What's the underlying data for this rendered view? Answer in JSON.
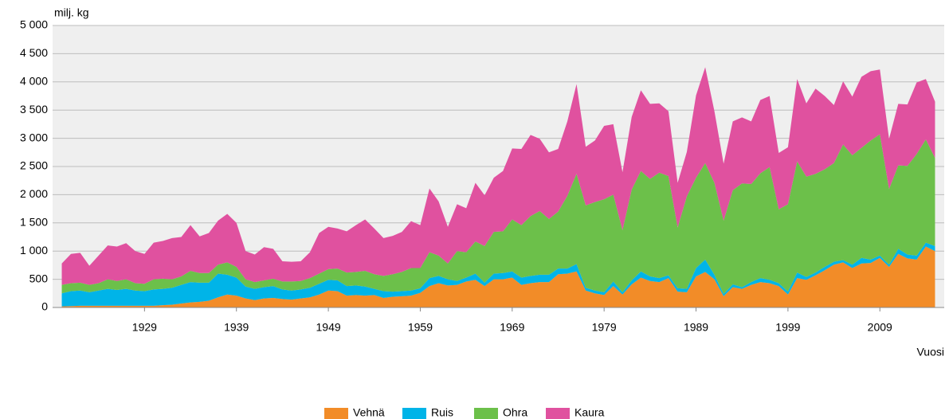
{
  "chart_data": {
    "type": "stacked_area",
    "y_label": "milj. kg",
    "x_label": "Vuosi",
    "x": [
      1920,
      1921,
      1922,
      1923,
      1924,
      1925,
      1926,
      1927,
      1928,
      1929,
      1930,
      1931,
      1932,
      1933,
      1934,
      1935,
      1936,
      1937,
      1938,
      1939,
      1940,
      1941,
      1942,
      1943,
      1944,
      1945,
      1946,
      1947,
      1948,
      1949,
      1950,
      1951,
      1952,
      1953,
      1954,
      1955,
      1956,
      1957,
      1958,
      1959,
      1960,
      1961,
      1962,
      1963,
      1964,
      1965,
      1966,
      1967,
      1968,
      1969,
      1970,
      1971,
      1972,
      1973,
      1974,
      1975,
      1976,
      1977,
      1978,
      1979,
      1980,
      1981,
      1982,
      1983,
      1984,
      1985,
      1986,
      1987,
      1988,
      1989,
      1990,
      1991,
      1992,
      1993,
      1994,
      1995,
      1996,
      1997,
      1998,
      1999,
      2000,
      2001,
      2002,
      2003,
      2004,
      2005,
      2006,
      2007,
      2008,
      2009,
      2010,
      2011,
      2012,
      2013,
      2014,
      2015
    ],
    "series": [
      {
        "name": "Vehnä",
        "color": "#f28c28",
        "values": [
          20,
          25,
          30,
          30,
          30,
          30,
          30,
          30,
          30,
          30,
          30,
          40,
          50,
          70,
          90,
          100,
          120,
          180,
          230,
          210,
          160,
          130,
          160,
          170,
          150,
          140,
          160,
          180,
          230,
          300,
          290,
          210,
          220,
          210,
          220,
          170,
          190,
          200,
          210,
          260,
          380,
          430,
          390,
          400,
          460,
          490,
          380,
          500,
          500,
          530,
          400,
          430,
          450,
          450,
          590,
          600,
          640,
          300,
          250,
          220,
          380,
          230,
          410,
          530,
          470,
          450,
          520,
          280,
          270,
          550,
          630,
          500,
          200,
          360,
          330,
          400,
          450,
          430,
          380,
          230,
          520,
          490,
          570,
          660,
          760,
          800,
          700,
          780,
          790,
          880,
          720,
          950,
          870,
          850,
          1080,
          1000
        ]
      },
      {
        "name": "Ruis",
        "color": "#00b4e8",
        "values": [
          230,
          265,
          270,
          240,
          270,
          300,
          280,
          300,
          270,
          260,
          290,
          290,
          300,
          330,
          360,
          340,
          320,
          420,
          350,
          320,
          210,
          200,
          200,
          210,
          170,
          160,
          160,
          170,
          190,
          190,
          190,
          170,
          170,
          160,
          110,
          120,
          90,
          90,
          90,
          80,
          140,
          130,
          110,
          70,
          70,
          110,
          60,
          100,
          110,
          110,
          130,
          130,
          130,
          130,
          100,
          90,
          130,
          50,
          50,
          50,
          80,
          40,
          70,
          110,
          80,
          70,
          50,
          60,
          60,
          150,
          220,
          80,
          40,
          50,
          30,
          50,
          70,
          60,
          50,
          50,
          100,
          50,
          50,
          60,
          50,
          40,
          60,
          100,
          60,
          40,
          40,
          90,
          70,
          70,
          70,
          90
        ]
      },
      {
        "name": "Ohra",
        "color": "#6cc04a",
        "values": [
          150,
          140,
          140,
          130,
          130,
          170,
          160,
          170,
          130,
          130,
          180,
          180,
          150,
          150,
          200,
          170,
          170,
          160,
          220,
          190,
          130,
          120,
          120,
          130,
          140,
          160,
          150,
          170,
          180,
          190,
          210,
          240,
          240,
          280,
          260,
          270,
          310,
          340,
          400,
          360,
          460,
          360,
          280,
          530,
          450,
          570,
          650,
          740,
          740,
          920,
          930,
          1060,
          1130,
          990,
          1010,
          1290,
          1600,
          1460,
          1570,
          1650,
          1540,
          1100,
          1610,
          1780,
          1730,
          1870,
          1760,
          1080,
          1640,
          1600,
          1710,
          1630,
          1300,
          1670,
          1840,
          1740,
          1860,
          2000,
          1310,
          1550,
          1970,
          1780,
          1750,
          1730,
          1750,
          2050,
          1940,
          1950,
          2110,
          2150,
          1340,
          1480,
          1570,
          1800,
          1830,
          1560
        ]
      },
      {
        "name": "Kaura",
        "color": "#e0519f",
        "values": [
          380,
          520,
          530,
          340,
          490,
          600,
          610,
          640,
          570,
          530,
          650,
          670,
          730,
          700,
          810,
          650,
          710,
          780,
          860,
          780,
          500,
          490,
          590,
          530,
          360,
          350,
          350,
          460,
          720,
          750,
          710,
          730,
          830,
          910,
          810,
          670,
          680,
          710,
          830,
          760,
          1130,
          960,
          650,
          830,
          780,
          1040,
          900,
          960,
          1070,
          1260,
          1350,
          1440,
          1280,
          1180,
          1110,
          1320,
          1590,
          1040,
          1090,
          1300,
          1250,
          1030,
          1290,
          1430,
          1330,
          1230,
          1150,
          790,
          790,
          1460,
          1700,
          1270,
          1010,
          1220,
          1170,
          1110,
          1300,
          1260,
          1000,
          1010,
          1460,
          1300,
          1510,
          1300,
          1030,
          1120,
          1040,
          1260,
          1230,
          1150,
          890,
          1090,
          1090,
          1270,
          1070,
          1000
        ]
      }
    ],
    "xlim": [
      1919,
      2016
    ],
    "xticks": [
      1929,
      1939,
      1949,
      1959,
      1969,
      1979,
      1989,
      1999,
      2009
    ],
    "ylim": [
      0,
      5000
    ],
    "yticks": [
      0,
      500,
      {
        "value": 1000,
        "label": "1 000"
      },
      {
        "value": 1500,
        "label": "1 500"
      },
      {
        "value": 2000,
        "label": "2 000"
      },
      {
        "value": 2500,
        "label": "2 500"
      },
      {
        "value": 3000,
        "label": "3 000"
      },
      {
        "value": 3500,
        "label": "3 500"
      },
      {
        "value": 4000,
        "label": "4 000"
      },
      {
        "value": 4500,
        "label": "4 500"
      },
      {
        "value": 5000,
        "label": "5 000"
      }
    ],
    "grid": true,
    "legend": "bottom"
  }
}
